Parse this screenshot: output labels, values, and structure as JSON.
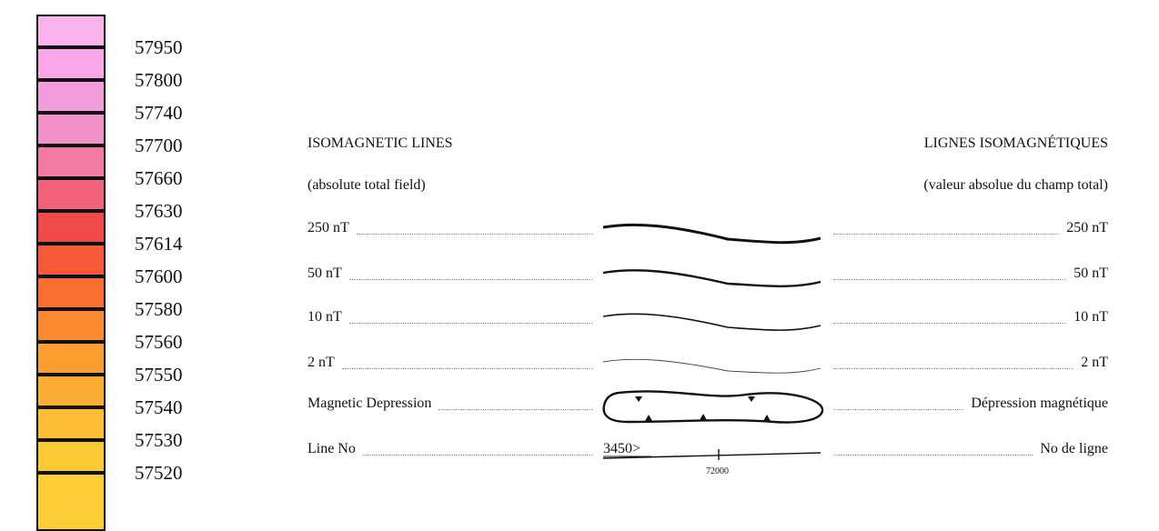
{
  "legend": {
    "colorbar": [
      {
        "value": "",
        "color": "#fbb3ee"
      },
      {
        "value": "57950",
        "color": "#f8a8e6"
      },
      {
        "value": "57800",
        "color": "#f39cdc"
      },
      {
        "value": "57740",
        "color": "#f290c9"
      },
      {
        "value": "57700",
        "color": "#f37aa3"
      },
      {
        "value": "57660",
        "color": "#f2637a"
      },
      {
        "value": "57630",
        "color": "#f24a4a"
      },
      {
        "value": "57614",
        "color": "#f55b3a"
      },
      {
        "value": "57600",
        "color": "#f77032"
      },
      {
        "value": "57580",
        "color": "#f98a31"
      },
      {
        "value": "57560",
        "color": "#fa9e32"
      },
      {
        "value": "57550",
        "color": "#fbae33"
      },
      {
        "value": "57540",
        "color": "#fbbe34"
      },
      {
        "value": "57530",
        "color": "#fcc936"
      }
    ],
    "colorbar_cut_label": "57520"
  },
  "headers": {
    "left_title": "ISOMAGNETIC LINES",
    "left_subtitle": "(absolute total field)",
    "right_title": "LIGNES ISOMAGNÉTIQUES",
    "right_subtitle": "(valeur absolue du champ total)"
  },
  "rows": [
    {
      "left": "250 nT",
      "right": "250 nT",
      "symbol": "contour-thick"
    },
    {
      "left": "50 nT",
      "right": "50 nT",
      "symbol": "contour-medium"
    },
    {
      "left": "10 nT",
      "right": "10 nT",
      "symbol": "contour-thin"
    },
    {
      "left": "2 nT",
      "right": "2 nT",
      "symbol": "contour-hairline"
    },
    {
      "left": "Magnetic Depression",
      "right": "Dépression magnétique",
      "symbol": "depression-closed-contour"
    },
    {
      "left": "Line No",
      "right": "No de ligne",
      "symbol": "flight-line"
    }
  ],
  "flight_line": {
    "line_label": "3450>",
    "fiducial_label": "72000"
  }
}
